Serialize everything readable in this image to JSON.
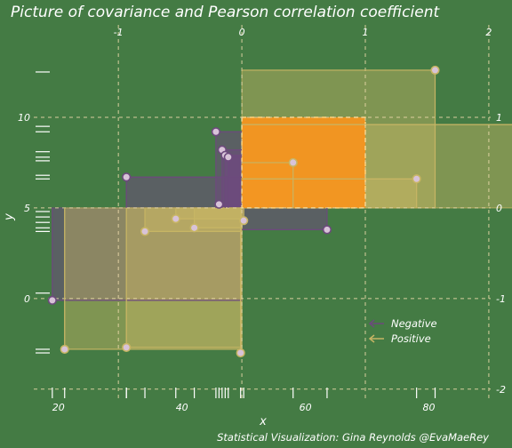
{
  "chart_data": {
    "type": "scatter",
    "title": "Picture of covariance and Pearson correlation coefficient",
    "caption": "Statistical Visualization: Gina Reynolds @EvaMaeRey",
    "xlabel": "x",
    "ylabel": "y",
    "xlim": [
      16,
      90
    ],
    "ylim": [
      -5.5,
      15
    ],
    "x_ticks": [
      20,
      40,
      60,
      80
    ],
    "y_ticks": [
      0,
      5,
      10
    ],
    "mean": {
      "x": 49.7,
      "y": 5
    },
    "sd": {
      "x": 20,
      "y": 5
    },
    "top_ticks": [
      -1,
      0,
      1,
      2
    ],
    "right_ticks": [
      1,
      0,
      -1,
      -2
    ],
    "legend": {
      "position": "bottom-right",
      "entries": [
        "Negative",
        "Positive"
      ]
    },
    "colors": {
      "background": "#447b44",
      "negative": "#6d4a7d",
      "positive": "#c7b564",
      "mean_box": "#f7941d",
      "point_fill": "#d8c3d8",
      "guide": "#e8d7a8"
    },
    "points": [
      {
        "x": 19,
        "y": -0.1,
        "sign": "Negative"
      },
      {
        "x": 21,
        "y": -2.8,
        "sign": "Positive"
      },
      {
        "x": 31,
        "y": 6.7,
        "sign": "Negative"
      },
      {
        "x": 31,
        "y": -2.7,
        "sign": "Positive"
      },
      {
        "x": 34,
        "y": 3.7,
        "sign": "Positive"
      },
      {
        "x": 39,
        "y": 4.4,
        "sign": "Positive"
      },
      {
        "x": 42,
        "y": 3.9,
        "sign": "Positive"
      },
      {
        "x": 45.5,
        "y": 9.2,
        "sign": "Negative"
      },
      {
        "x": 46,
        "y": 5.2,
        "sign": "Negative"
      },
      {
        "x": 46.5,
        "y": 8.2,
        "sign": "Negative"
      },
      {
        "x": 47,
        "y": 7.9,
        "sign": "Negative"
      },
      {
        "x": 47.5,
        "y": 7.8,
        "sign": "Negative"
      },
      {
        "x": 49.5,
        "y": -3.0,
        "sign": "Positive"
      },
      {
        "x": 50,
        "y": 4.3,
        "sign": "Positive"
      },
      {
        "x": 58,
        "y": 7.5,
        "sign": "Positive"
      },
      {
        "x": 63.5,
        "y": 3.8,
        "sign": "Negative"
      },
      {
        "x": 78,
        "y": 6.6,
        "sign": "Positive"
      },
      {
        "x": 81,
        "y": 12.6,
        "sign": "Positive"
      },
      {
        "x": 97,
        "y": 9.6,
        "sign": "Positive"
      }
    ],
    "rug_y": [
      12.5,
      9.5,
      9.2,
      8.1,
      7.8,
      7.6,
      6.8,
      6.6,
      4.8,
      4.5,
      4.2,
      3.9,
      3.7,
      0.3,
      -2.8,
      -3.0
    ]
  }
}
